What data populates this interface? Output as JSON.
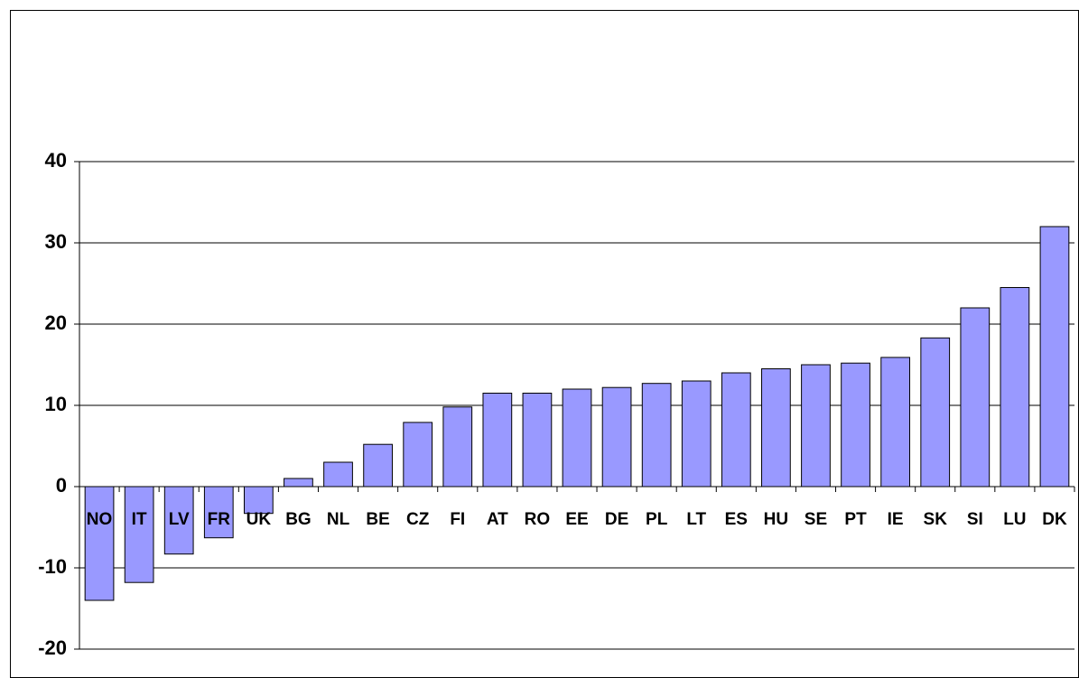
{
  "chart_data": {
    "type": "bar",
    "categories": [
      "NO",
      "IT",
      "LV",
      "FR",
      "UK",
      "BG",
      "NL",
      "BE",
      "CZ",
      "FI",
      "AT",
      "RO",
      "EE",
      "DE",
      "PL",
      "LT",
      "ES",
      "HU",
      "SE",
      "PT",
      "IE",
      "SK",
      "SI",
      "LU",
      "DK"
    ],
    "values": [
      -14,
      -11.8,
      -8.3,
      -6.3,
      -3.3,
      1,
      3,
      5.2,
      7.9,
      9.8,
      11.5,
      11.5,
      12,
      12.2,
      12.7,
      13,
      14,
      14.5,
      15,
      15.2,
      15.9,
      18.3,
      22,
      24.5,
      32
    ],
    "color": "#9999ff",
    "ylim": [
      -20,
      40
    ],
    "yticks": [
      -20,
      -10,
      0,
      10,
      20,
      30,
      40
    ],
    "grid": true
  }
}
